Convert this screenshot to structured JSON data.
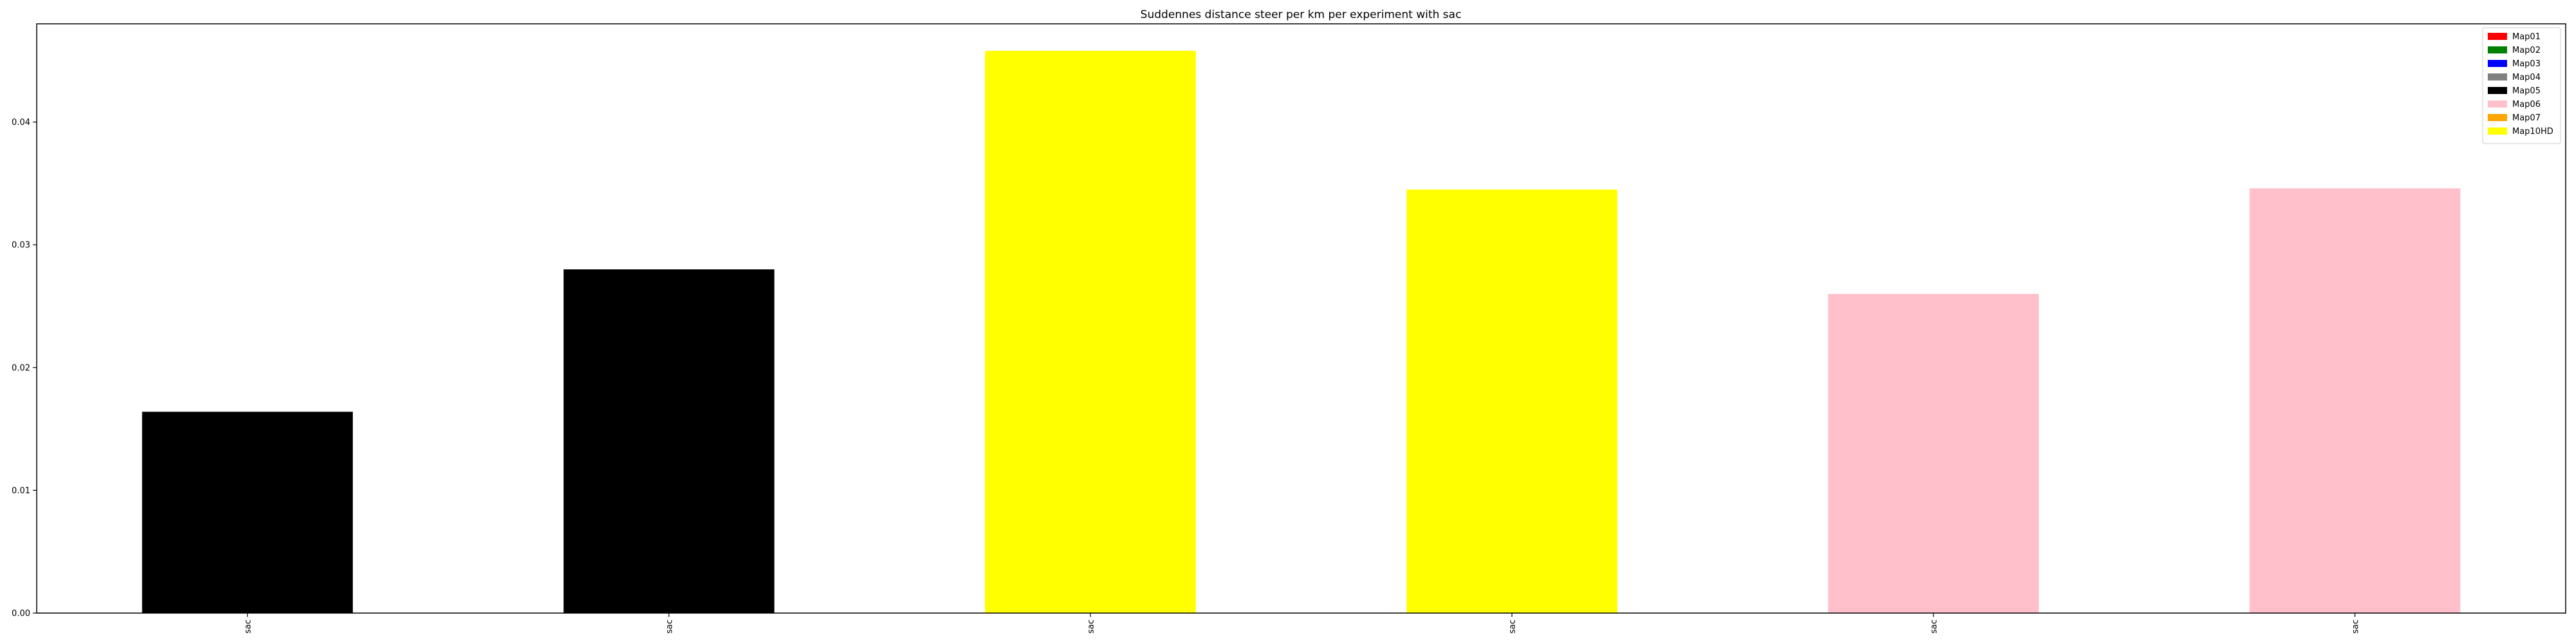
{
  "chart_data": {
    "type": "bar",
    "title": "Suddennes distance steer per km per experiment with sac",
    "xlabel": "",
    "ylabel": "",
    "categories": [
      "sac",
      "sac",
      "sac",
      "sac",
      "sac",
      "sac"
    ],
    "values": [
      0.0164,
      0.028,
      0.0458,
      0.0345,
      0.026,
      0.0346
    ],
    "bar_colors": [
      "#000000",
      "#000000",
      "#ffff00",
      "#ffff00",
      "#ffc0cb",
      "#ffc0cb"
    ],
    "ylim": [
      0,
      0.048
    ],
    "yticks": [
      {
        "value": 0.0,
        "label": "0.00"
      },
      {
        "value": 0.01,
        "label": "0.01"
      },
      {
        "value": 0.02,
        "label": "0.02"
      },
      {
        "value": 0.03,
        "label": "0.03"
      },
      {
        "value": 0.04,
        "label": "0.04"
      }
    ],
    "grid": false,
    "legend": {
      "placement": "top-right",
      "entries": [
        {
          "label": "Map01",
          "color": "#ff0000"
        },
        {
          "label": "Map02",
          "color": "#008000"
        },
        {
          "label": "Map03",
          "color": "#0000ff"
        },
        {
          "label": "Map04",
          "color": "#808080"
        },
        {
          "label": "Map05",
          "color": "#000000"
        },
        {
          "label": "Map06",
          "color": "#ffc0cb"
        },
        {
          "label": "Map07",
          "color": "#ffa500"
        },
        {
          "label": "Map10HD",
          "color": "#ffff00"
        }
      ]
    }
  }
}
